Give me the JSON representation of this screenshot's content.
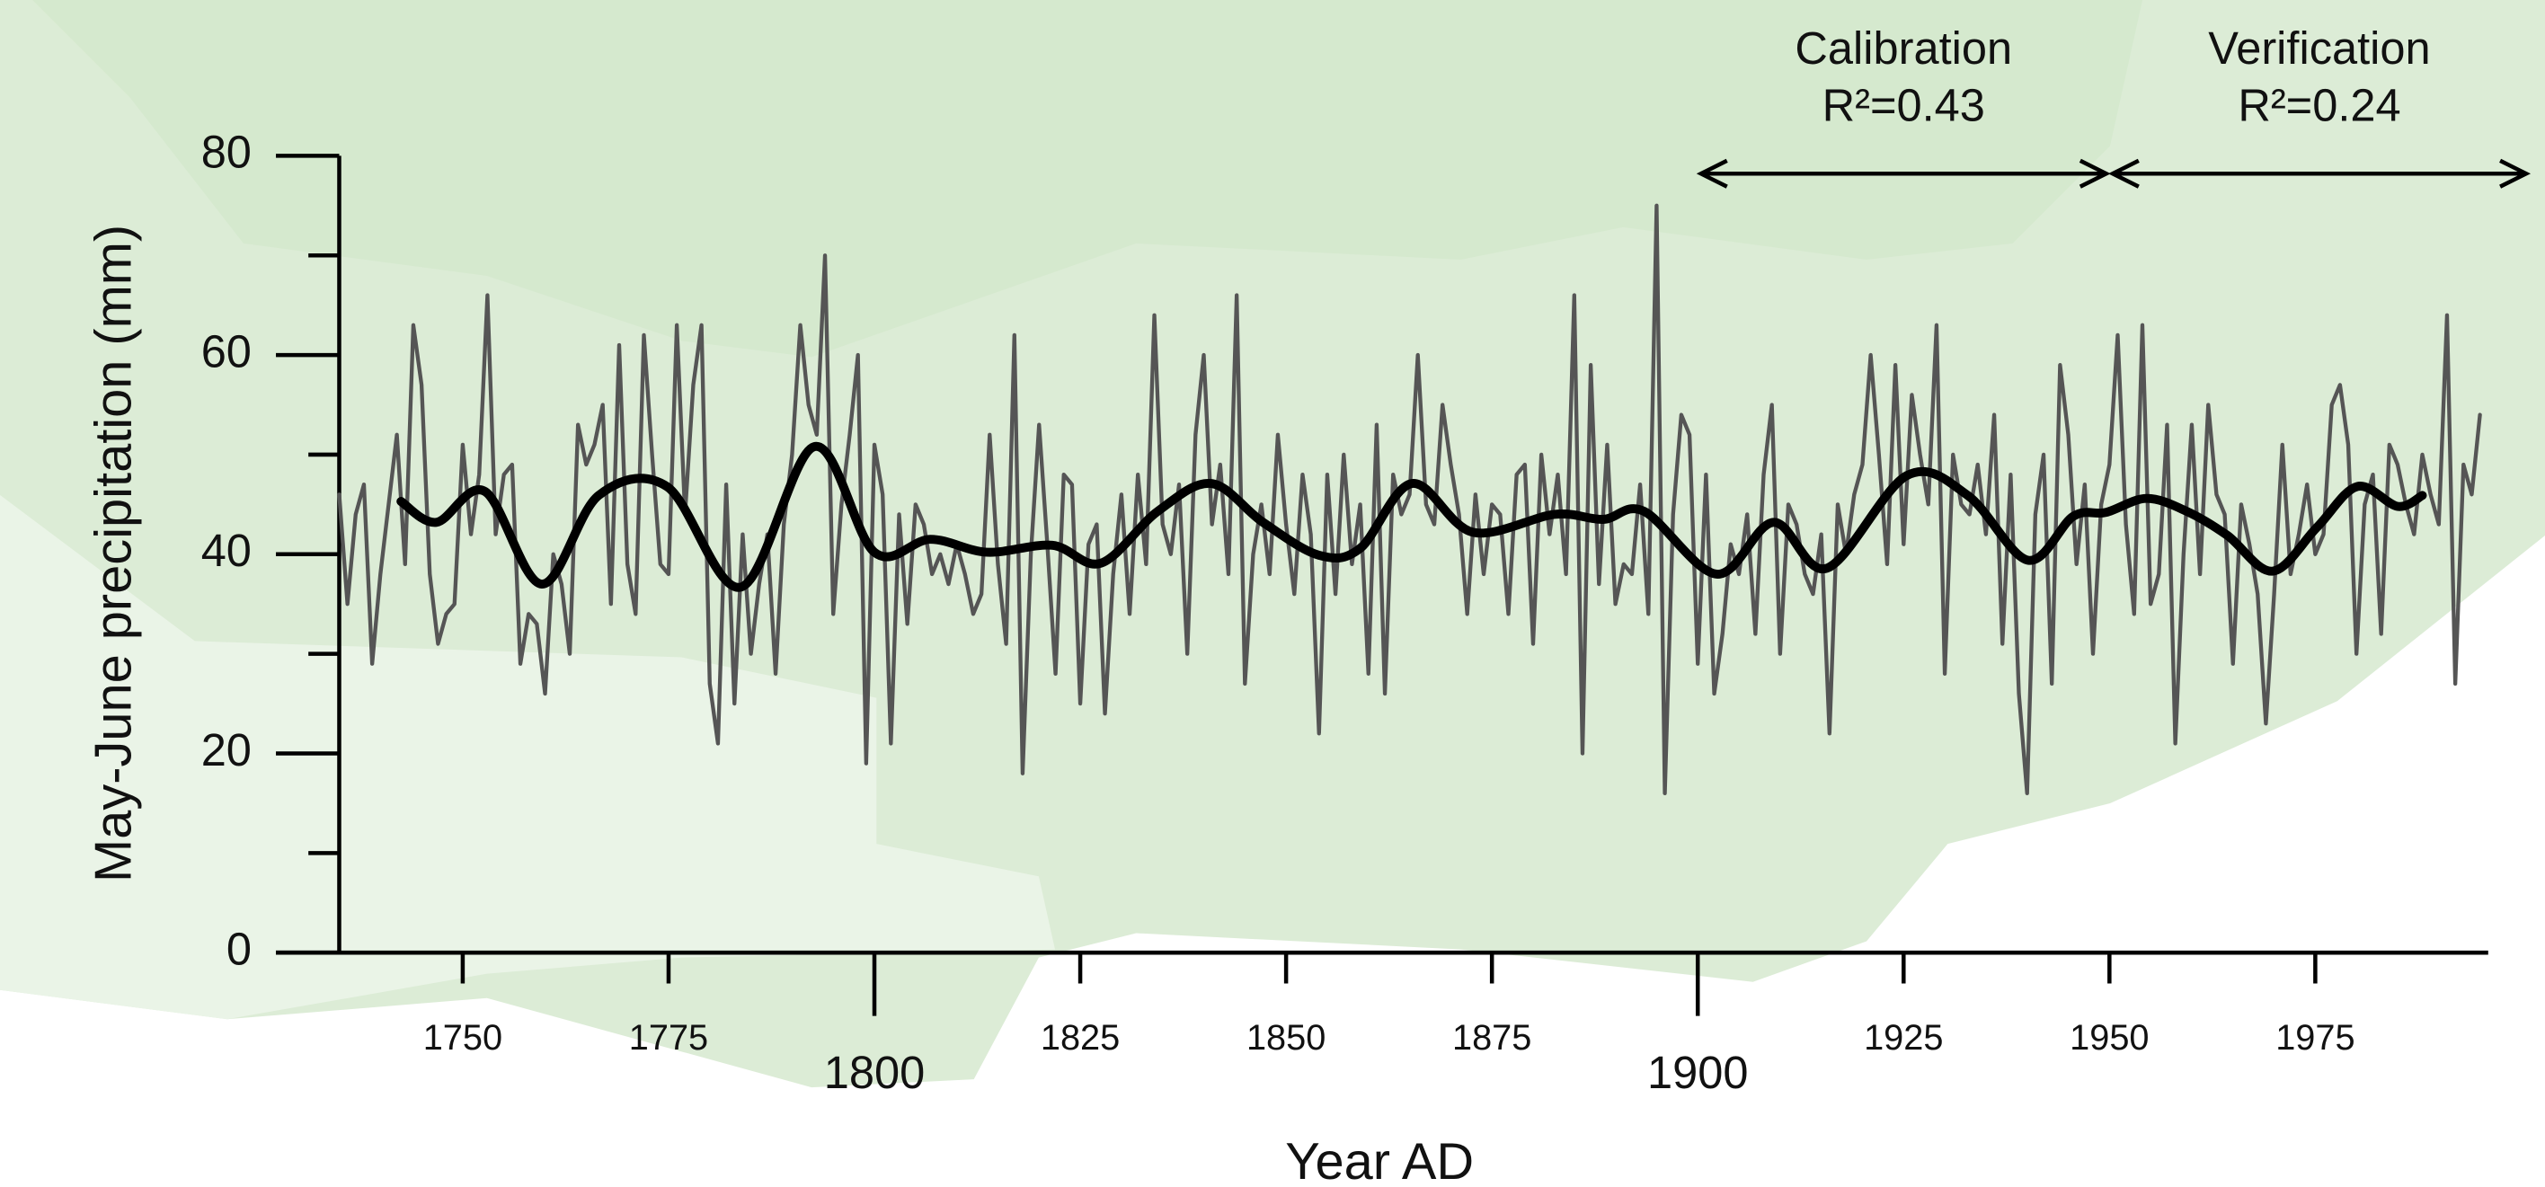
{
  "chart_data": {
    "type": "line",
    "xlabel": "Year AD",
    "ylabel": "May-June precipitation (mm)",
    "xlim": [
      1735,
      1996
    ],
    "ylim": [
      0,
      80
    ],
    "xticks": [
      1750,
      1775,
      1825,
      1850,
      1875,
      1925,
      1950,
      1975
    ],
    "xticks_major": [
      1800,
      1900
    ],
    "yticks": [
      0,
      20,
      40,
      60,
      80
    ],
    "yticks_minor": [
      10,
      30,
      50,
      70
    ],
    "series": [
      {
        "color": "#555555",
        "smooth": false,
        "x": [
          1735,
          1736,
          1737,
          1738,
          1739,
          1740,
          1741,
          1742,
          1743,
          1744,
          1745,
          1746,
          1747,
          1748,
          1749,
          1750,
          1751,
          1752,
          1753,
          1754,
          1755,
          1756,
          1757,
          1758,
          1759,
          1760,
          1761,
          1762,
          1763,
          1764,
          1765,
          1766,
          1767,
          1768,
          1769,
          1770,
          1771,
          1772,
          1773,
          1774,
          1775,
          1776,
          1777,
          1778,
          1779,
          1780,
          1781,
          1782,
          1783,
          1784,
          1785,
          1786,
          1787,
          1788,
          1789,
          1790,
          1791,
          1792,
          1793,
          1794,
          1795,
          1796,
          1797,
          1798,
          1799,
          1800,
          1801,
          1802,
          1803,
          1804,
          1805,
          1806,
          1807,
          1808,
          1809,
          1810,
          1811,
          1812,
          1813,
          1814,
          1815,
          1816,
          1817,
          1818,
          1819,
          1820,
          1821,
          1822,
          1823,
          1824,
          1825,
          1826,
          1827,
          1828,
          1829,
          1830,
          1831,
          1832,
          1833,
          1834,
          1835,
          1836,
          1837,
          1838,
          1839,
          1840,
          1841,
          1842,
          1843,
          1844,
          1845,
          1846,
          1847,
          1848,
          1849,
          1850,
          1851,
          1852,
          1853,
          1854,
          1855,
          1856,
          1857,
          1858,
          1859,
          1860,
          1861,
          1862,
          1863,
          1864,
          1865,
          1866,
          1867,
          1868,
          1869,
          1870,
          1871,
          1872,
          1873,
          1874,
          1875,
          1876,
          1877,
          1878,
          1879,
          1880,
          1881,
          1882,
          1883,
          1884,
          1885,
          1886,
          1887,
          1888,
          1889,
          1890,
          1891,
          1892,
          1893,
          1894,
          1895,
          1896,
          1897,
          1898,
          1899,
          1900,
          1901,
          1902,
          1903,
          1904,
          1905,
          1906,
          1907,
          1908,
          1909,
          1910,
          1911,
          1912,
          1913,
          1914,
          1915,
          1916,
          1917,
          1918,
          1919,
          1920,
          1921,
          1922,
          1923,
          1924,
          1925,
          1926,
          1927,
          1928,
          1929,
          1930,
          1931,
          1932,
          1933,
          1934,
          1935,
          1936,
          1937,
          1938,
          1939,
          1940,
          1941,
          1942,
          1943,
          1944,
          1945,
          1946,
          1947,
          1948,
          1949,
          1950,
          1951,
          1952,
          1953,
          1954,
          1955,
          1956,
          1957,
          1958,
          1959,
          1960,
          1961,
          1962,
          1963,
          1964,
          1965,
          1966,
          1967,
          1968,
          1969,
          1970,
          1971,
          1972,
          1973,
          1974,
          1975,
          1976,
          1977,
          1978,
          1979,
          1980,
          1981,
          1982,
          1983,
          1984,
          1985,
          1986,
          1987,
          1988,
          1989,
          1990,
          1991,
          1992,
          1993,
          1994,
          1995
        ],
        "values": [
          46,
          35,
          44,
          47,
          29,
          38,
          45,
          52,
          39,
          63,
          57,
          38,
          31,
          34,
          35,
          51,
          42,
          48,
          66,
          42,
          48,
          49,
          29,
          34,
          33,
          26,
          40,
          37,
          30,
          53,
          49,
          51,
          55,
          35,
          61,
          39,
          34,
          62,
          50,
          39,
          38,
          63,
          44,
          57,
          63,
          27,
          21,
          47,
          25,
          42,
          30,
          37,
          42,
          28,
          43,
          50,
          63,
          55,
          52,
          70,
          34,
          45,
          52,
          60,
          19,
          51,
          46,
          21,
          44,
          33,
          45,
          43,
          38,
          40,
          37,
          41,
          38,
          34,
          36,
          52,
          39,
          31,
          62,
          18,
          40,
          53,
          41,
          28,
          48,
          47,
          25,
          41,
          43,
          24,
          38,
          46,
          34,
          48,
          39,
          64,
          43,
          40,
          47,
          30,
          52,
          60,
          43,
          49,
          38,
          66,
          27,
          40,
          45,
          38,
          52,
          43,
          36,
          48,
          42,
          22,
          48,
          36,
          50,
          39,
          45,
          28,
          53,
          26,
          48,
          44,
          46,
          60,
          45,
          43,
          55,
          49,
          44,
          34,
          46,
          38,
          45,
          44,
          34,
          48,
          49,
          31,
          50,
          42,
          48,
          38,
          66,
          20,
          59,
          37,
          51,
          35,
          39,
          38,
          47,
          34,
          75,
          16,
          44,
          54,
          52,
          29,
          48,
          26,
          32,
          41,
          38,
          44,
          32,
          48,
          55,
          30,
          45,
          43,
          38,
          36,
          42,
          22,
          45,
          40,
          46,
          49,
          60,
          50,
          39,
          59,
          41,
          56,
          50,
          45,
          63,
          28,
          50,
          45,
          44,
          49,
          42,
          54,
          31,
          48,
          26,
          16,
          44,
          50,
          27,
          59,
          52,
          39,
          47,
          30,
          45,
          49,
          62,
          43,
          34,
          63,
          35,
          38,
          53,
          21,
          40,
          53,
          38,
          55,
          46,
          44,
          29,
          45,
          41,
          36,
          23,
          36,
          51,
          38,
          42,
          47,
          40,
          42,
          55,
          57,
          51,
          30,
          45,
          48,
          32,
          51,
          49,
          45,
          42,
          50,
          46,
          43,
          64,
          27,
          49,
          46,
          54
        ]
      },
      {
        "color": "#000000",
        "smooth": true,
        "x": [
          1742.5,
          1746.8,
          1752.7,
          1759.6,
          1766.5,
          1774.8,
          1783.8,
          1792.7,
          1800,
          1806.8,
          1813.7,
          1821.6,
          1827.5,
          1834.4,
          1840.9,
          1847.2,
          1854,
          1859,
          1865.3,
          1872.7,
          1882.6,
          1888.5,
          1893.5,
          1902.3,
          1909.2,
          1915.7,
          1925.4,
          1932.8,
          1940.1,
          1945.6,
          1949.6,
          1954.5,
          1959.4,
          1964.3,
          1969.8,
          1975.2,
          1980.1,
          1985,
          1988
        ],
        "values": [
          45.3,
          43.2,
          46.3,
          37.0,
          45.9,
          46.8,
          36.7,
          50.8,
          40.2,
          41.5,
          40.2,
          40.9,
          39.1,
          44.3,
          47.1,
          43.2,
          39.9,
          40.6,
          47.1,
          42.2,
          44.0,
          43.5,
          44.3,
          38.0,
          43.2,
          38.6,
          47.9,
          45.9,
          39.4,
          43.8,
          44.2,
          45.6,
          44.3,
          41.9,
          38.3,
          42.7,
          46.8,
          44.8,
          45.9
        ]
      }
    ],
    "annotations": [
      {
        "label": "Calibration",
        "stat": "R²=0.43",
        "span": [
          1900,
          1950
        ]
      },
      {
        "label": "Verification",
        "stat": "R²=0.24",
        "span": [
          1950,
          2001
        ]
      }
    ]
  }
}
